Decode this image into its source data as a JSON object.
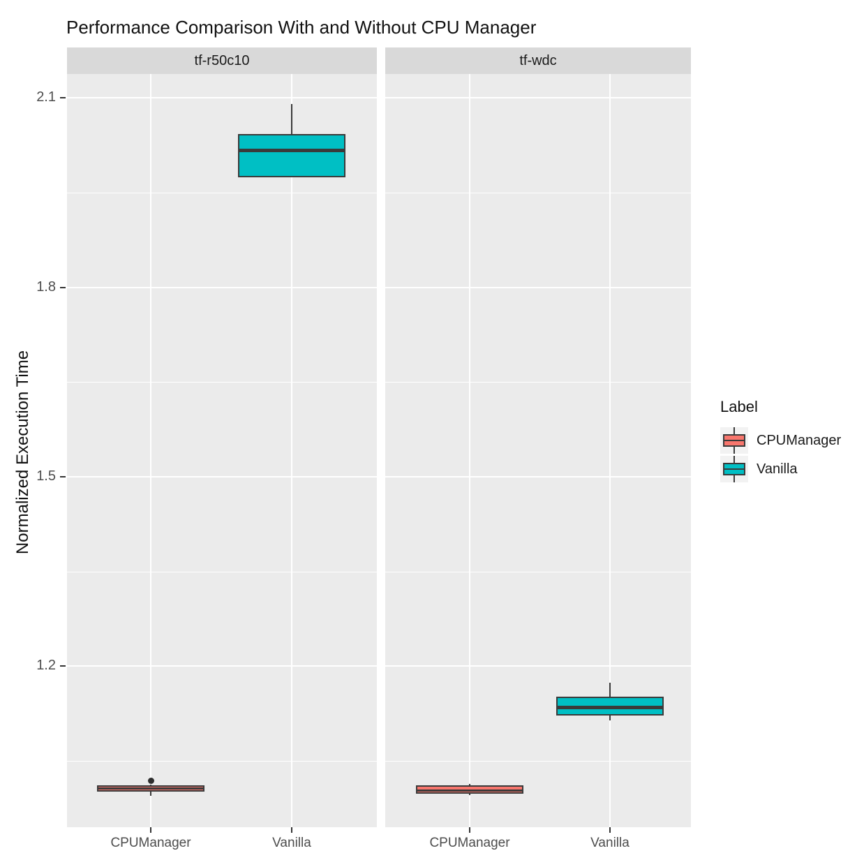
{
  "chart_data": {
    "type": "boxplot",
    "title": "Performance Comparison With and Without CPU Manager",
    "ylabel": "Normalized Execution Time",
    "xlabel": "",
    "x_categories": [
      "CPUManager",
      "Vanilla"
    ],
    "y_ticks": [
      2.1,
      1.8,
      1.5,
      1.2
    ],
    "y_minor_gridlines": [
      1.95,
      1.65,
      1.35,
      1.05
    ],
    "ylim": [
      0.945,
      2.138
    ],
    "grid": true,
    "legend": {
      "title": "Label",
      "position": "right",
      "entries": [
        {
          "label": "CPUManager",
          "color": "#F8766D"
        },
        {
          "label": "Vanilla",
          "color": "#00BFC4"
        }
      ]
    },
    "facets": [
      {
        "label": "tf-r50c10",
        "boxes": [
          {
            "category": "CPUManager",
            "series": "CPUManager",
            "color": "#F8766D",
            "whisker_low": 0.995,
            "q1": 1.001,
            "median": 1.006,
            "q3": 1.011,
            "whisker_high": 1.012,
            "outliers": [
              1.018
            ]
          },
          {
            "category": "Vanilla",
            "series": "Vanilla",
            "color": "#00BFC4",
            "whisker_low": 1.974,
            "q1": 1.974,
            "median": 2.017,
            "q3": 2.043,
            "whisker_high": 2.09,
            "outliers": []
          }
        ]
      },
      {
        "label": "tf-wdc",
        "boxes": [
          {
            "category": "CPUManager",
            "series": "CPUManager",
            "color": "#F8766D",
            "whisker_low": 0.996,
            "q1": 0.998,
            "median": 1.003,
            "q3": 1.011,
            "whisker_high": 1.013,
            "outliers": []
          },
          {
            "category": "Vanilla",
            "series": "Vanilla",
            "color": "#00BFC4",
            "whisker_low": 1.114,
            "q1": 1.122,
            "median": 1.135,
            "q3": 1.152,
            "whisker_high": 1.174,
            "outliers": []
          }
        ]
      }
    ],
    "colors": {
      "panel_background": "#EBEBEB",
      "strip_background": "#D9D9D9",
      "gridline": "#FFFFFF",
      "box_border": "#3A3A3A",
      "axis_text": "#4D4D4D",
      "outlier": "#2E2E2E"
    }
  }
}
